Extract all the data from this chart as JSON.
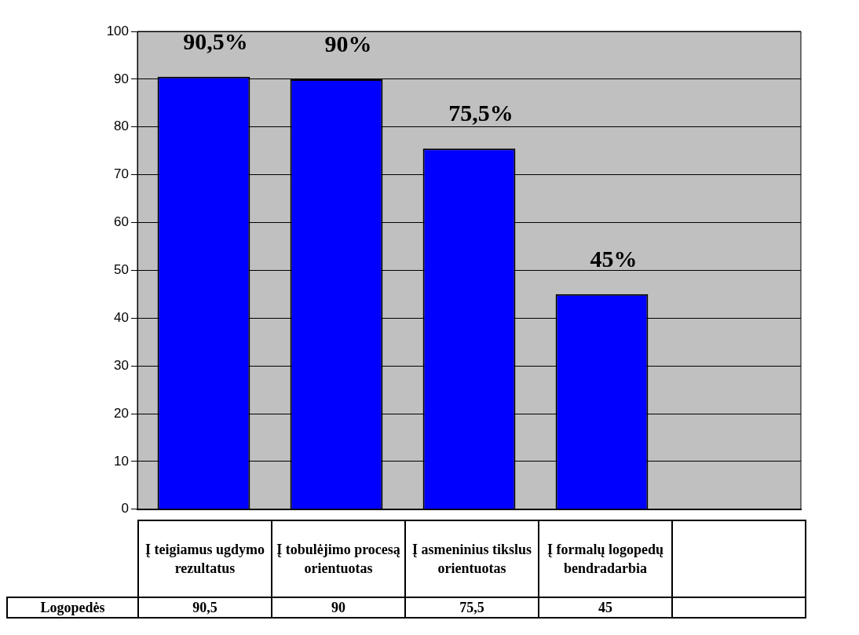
{
  "chart_data": {
    "type": "bar",
    "categories": [
      "Į teigiamus ugdymo rezultatus",
      "Į tobulėjimo procesą orientuotas",
      "Į asmeninius tikslus orientuotas",
      "Į formalų logopedų bendradarbia",
      null
    ],
    "series": [
      {
        "name": "Logopedės",
        "color": "#0000ff",
        "values": [
          90.5,
          90,
          75.5,
          45,
          null
        ],
        "value_labels": [
          "90,5%",
          "90%",
          "75,5%",
          "45%",
          null
        ]
      }
    ],
    "annotations": [
      "90,5",
      "90",
      "75,5",
      "45"
    ],
    "ylim": [
      0,
      100
    ],
    "yticks": [
      0,
      10,
      20,
      30,
      40,
      50,
      60,
      70,
      80,
      90,
      100
    ],
    "grid": "y",
    "legend": false
  }
}
